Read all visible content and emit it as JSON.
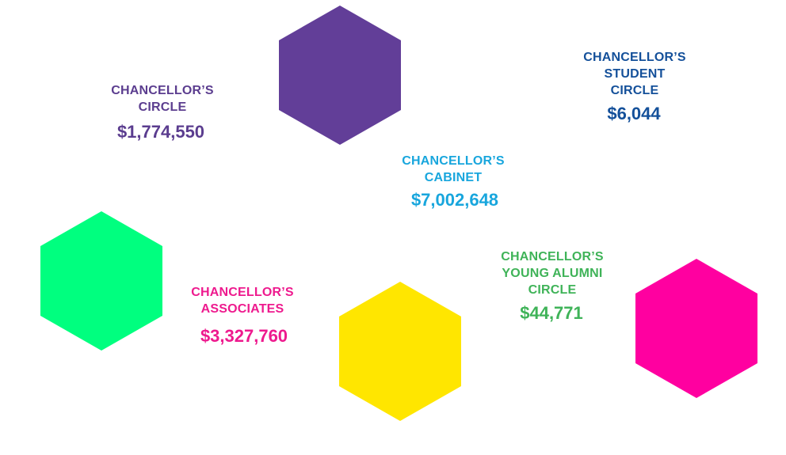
{
  "colors": {
    "purple": "#623e98",
    "green": "#00ff7f",
    "yellow": "#ffe600",
    "magenta": "#ff00a0",
    "circle_text": "#5b3d8f",
    "cabinet_text": "#18a6dd",
    "student_text": "#14509a",
    "associates_text": "#ee1a8e",
    "young_alumni_text": "#3fb358"
  },
  "hexagons": [
    {
      "name": "purple-hexagon",
      "fill": "#623e98"
    },
    {
      "name": "green-hexagon",
      "fill": "#00ff7f"
    },
    {
      "name": "yellow-hexagon",
      "fill": "#ffe600"
    },
    {
      "name": "magenta-hexagon",
      "fill": "#ff00a0"
    }
  ],
  "levels": {
    "circle": {
      "label": "CHANCELLOR’S\nCIRCLE",
      "amount": "$1,774,550"
    },
    "student_circle": {
      "label": "CHANCELLOR’S\nSTUDENT\nCIRCLE",
      "amount": "$6,044"
    },
    "cabinet": {
      "label": "CHANCELLOR’S\nCABINET",
      "amount": "$7,002,648"
    },
    "associates": {
      "label": "CHANCELLOR’S\nASSOCIATES",
      "amount": "$3,327,760"
    },
    "young_alumni_circle": {
      "label": "CHANCELLOR’S\nYOUNG ALUMNI\nCIRCLE",
      "amount": "$44,771"
    }
  }
}
